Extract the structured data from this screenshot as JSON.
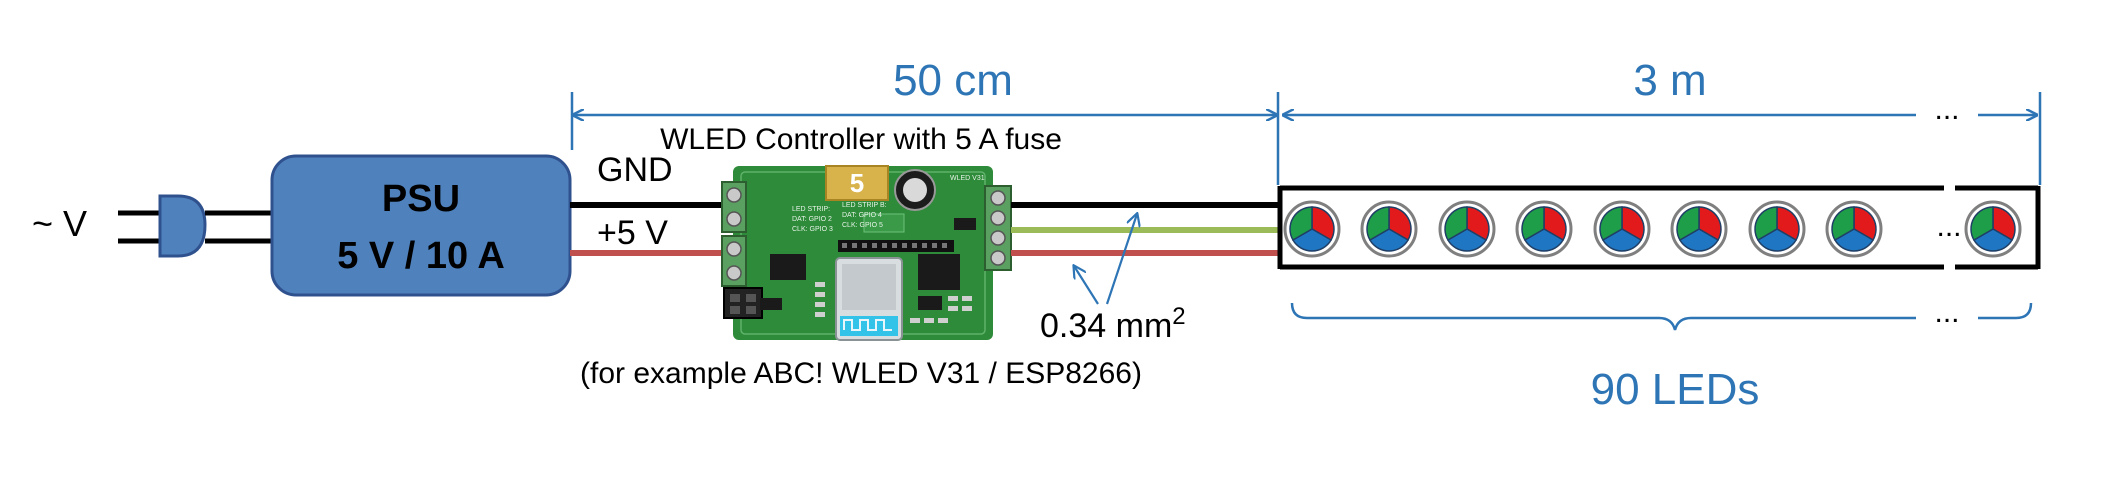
{
  "diagram": {
    "mains_label": "~ V",
    "psu": {
      "title": "PSU",
      "rating": "5 V / 10 A"
    },
    "wires": {
      "gnd_label": "GND",
      "vplus_label": "+5 V",
      "cross_section": "0.34 mm",
      "cross_section_sup": "2"
    },
    "controller": {
      "title": "WLED Controller with 5 A fuse",
      "example": "(for example ABC! WLED V31 / ESP8266)",
      "fuse_label": "5",
      "board_texts": [
        "LED STRIP:",
        "DAT: GPIO 2",
        "CLK: GPIO 3",
        "LED STRIP B:",
        "DAT: GPIO 4",
        "CLK: GPIO 5",
        "WLED V31"
      ]
    },
    "dimensions": {
      "cable_length": "50 cm",
      "strip_length": "3 m",
      "strip_ellipsis": "..."
    },
    "strip": {
      "led_count_label": "90 LEDs",
      "ellipsis": "..."
    },
    "colors": {
      "psu_fill": "#4f81bd",
      "psu_stroke": "#2f528f",
      "dimension_blue": "#2e75b6",
      "wire_red": "#c0504d",
      "wire_green": "#9bbb59",
      "wire_black": "#000000",
      "board_green": "#2e8b3a",
      "led_red": "#e31a1c",
      "led_green": "#1e9e48",
      "led_blue": "#1f77c4"
    }
  }
}
